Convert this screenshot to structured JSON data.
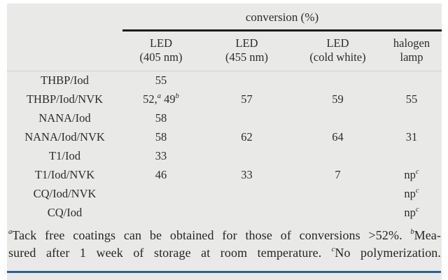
{
  "table": {
    "spanning_header": "conversion (%)",
    "columns": [
      {
        "line1": "LED",
        "line2": "(405 nm)"
      },
      {
        "line1": "LED",
        "line2": "(455 nm)"
      },
      {
        "line1": "LED",
        "line2": "(cold white)"
      },
      {
        "line1": "halogen",
        "line2": "lamp"
      }
    ],
    "rows": [
      {
        "label": "THBP/Iod",
        "c1": "55",
        "c2": "",
        "c3": "",
        "c4": ""
      },
      {
        "label": "THBP/Iod/NVK",
        "c1_p1": "52,",
        "c1_s1": "a",
        "c1_p2": "49",
        "c1_s2": "b",
        "c2": "57",
        "c3": "59",
        "c4": "55"
      },
      {
        "label": "NANA/Iod",
        "c1": "58",
        "c2": "",
        "c3": "",
        "c4": ""
      },
      {
        "label": "NANA/Iod/NVK",
        "c1": "58",
        "c2": "62",
        "c3": "64",
        "c4": "31"
      },
      {
        "label": "T1/Iod",
        "c1": "33",
        "c2": "",
        "c3": "",
        "c4": ""
      },
      {
        "label": "T1/Iod/NVK",
        "c1": "46",
        "c2": "33",
        "c3": "7",
        "c4": "np",
        "c4_sup": "c"
      },
      {
        "label": "CQ/Iod/NVK",
        "c1": "",
        "c2": "",
        "c3": "",
        "c4": "np",
        "c4_sup": "c"
      },
      {
        "label": "CQ/Iod",
        "c1": "",
        "c2": "",
        "c3": "",
        "c4": "np",
        "c4_sup": "c"
      }
    ]
  },
  "footnote": {
    "sup_a": "a",
    "seg1": "Tack free coatings can be obtained for those of conversions >52%.",
    "sup_b": "b",
    "seg2": "Mea-",
    "seg3": "sured after 1 week of storage at room temperature.",
    "sup_c": "c",
    "seg4": "No polymerization."
  },
  "colors": {
    "page_background": "#ffffff",
    "panel_background": "#e9e9e7",
    "text": "#2e2b28",
    "heavy_rule": "#1c1c1c",
    "light_rule": "#d3d3d0",
    "accent_bottom_rule": "#2f6093"
  }
}
